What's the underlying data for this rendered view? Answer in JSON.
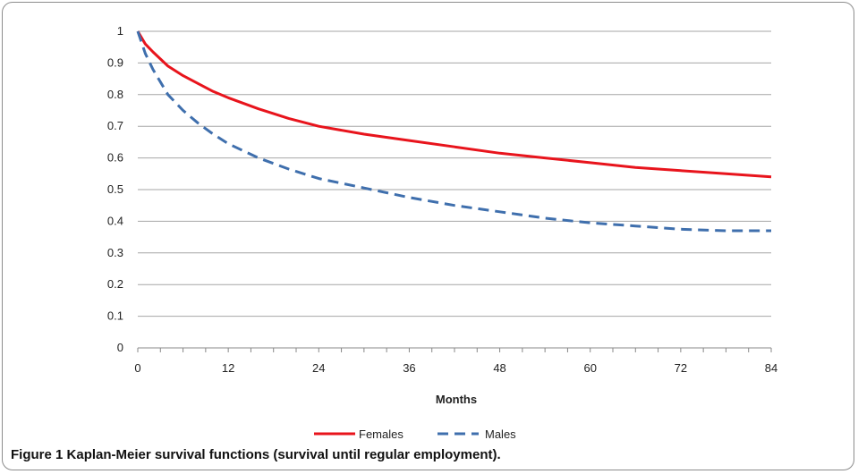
{
  "chart_data": {
    "type": "line",
    "xlabel": "Months",
    "ylabel": "",
    "xlim": [
      0,
      84
    ],
    "ylim": [
      0,
      1
    ],
    "x_ticks": [
      "0",
      "12",
      "24",
      "36",
      "48",
      "60",
      "72",
      "84"
    ],
    "y_ticks": [
      "0",
      "0.1",
      "0.2",
      "0.3",
      "0.4",
      "0.5",
      "0.6",
      "0.7",
      "0.8",
      "0.9",
      "1"
    ],
    "grid": "horizontal",
    "legend_position": "bottom",
    "series": [
      {
        "name": "Females",
        "color": "#e8141c",
        "style": "solid",
        "x": [
          0,
          1,
          2,
          4,
          6,
          8,
          10,
          12,
          16,
          20,
          24,
          30,
          36,
          42,
          48,
          54,
          60,
          66,
          72,
          78,
          84
        ],
        "y": [
          1.0,
          0.96,
          0.935,
          0.89,
          0.86,
          0.835,
          0.81,
          0.79,
          0.755,
          0.725,
          0.7,
          0.675,
          0.655,
          0.635,
          0.615,
          0.6,
          0.585,
          0.57,
          0.56,
          0.55,
          0.54
        ]
      },
      {
        "name": "Males",
        "color": "#3f6fad",
        "style": "dashed",
        "x": [
          0,
          1,
          2,
          4,
          6,
          8,
          10,
          12,
          16,
          20,
          24,
          30,
          36,
          42,
          48,
          54,
          60,
          66,
          72,
          78,
          84
        ],
        "y": [
          1.0,
          0.93,
          0.88,
          0.8,
          0.75,
          0.71,
          0.675,
          0.645,
          0.6,
          0.565,
          0.535,
          0.505,
          0.475,
          0.45,
          0.43,
          0.41,
          0.395,
          0.385,
          0.375,
          0.37,
          0.37
        ]
      }
    ]
  },
  "caption": {
    "label": "Figure 1",
    "text": "Kaplan-Meier survival functions (survival until regular employment)."
  }
}
